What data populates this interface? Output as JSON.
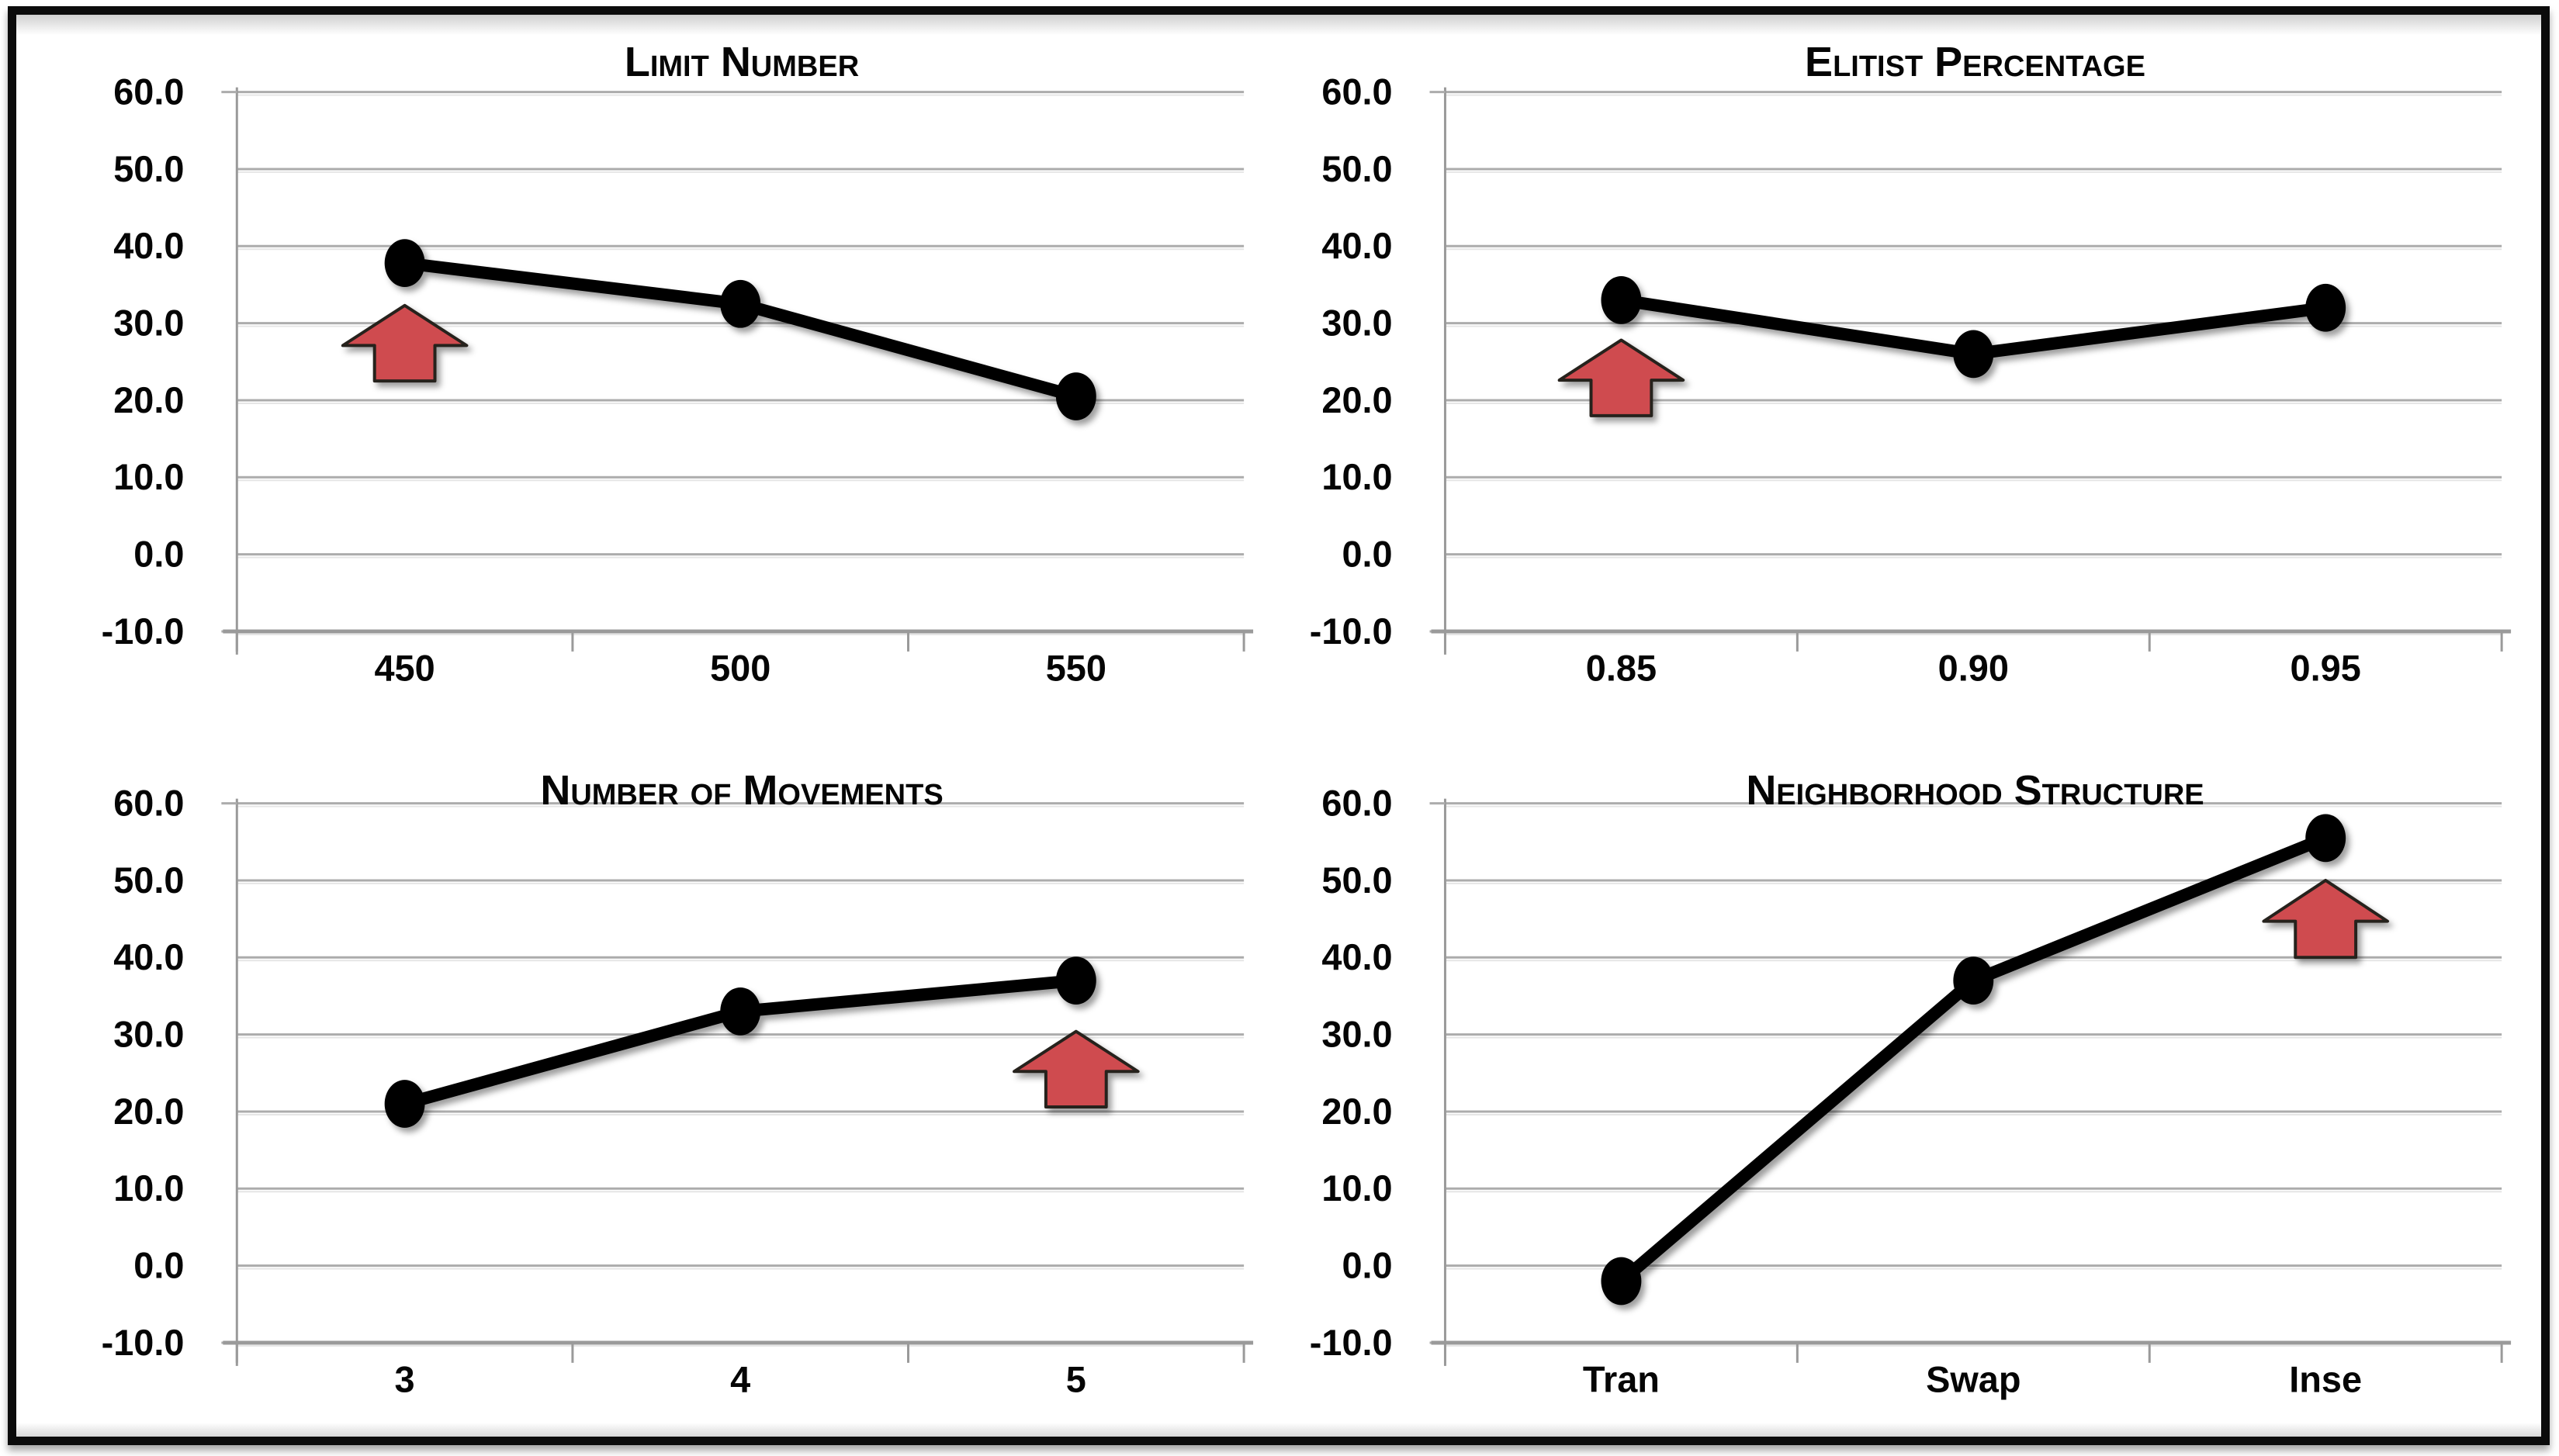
{
  "frame": {
    "background": "#ffffff",
    "border_color": "#0b0b0b"
  },
  "colors": {
    "line": "#000000",
    "marker": "#000000",
    "gridline": "#acacac",
    "gridline_highlight": "#e6e6e6",
    "axis": "#9a9a9a",
    "label": "#050505",
    "arrow_fill": "#CF4C50",
    "arrow_stroke": "#26201f"
  },
  "chart_data": [
    {
      "type": "line",
      "title": "Limit Number",
      "categories": [
        "450",
        "500",
        "550"
      ],
      "values": [
        37.8,
        32.5,
        20.5
      ],
      "ylim": [
        -10,
        60
      ],
      "yticks": [
        60,
        50,
        40,
        30,
        20,
        10,
        0,
        -10
      ],
      "ytick_format_decimals": 1,
      "grid": true,
      "legend": "none",
      "annotations": [
        {
          "type": "up-arrow",
          "category_index": 0,
          "tip_value": 32.3,
          "base_value": 22.5
        }
      ]
    },
    {
      "type": "line",
      "title": "Elitist Percentage",
      "categories": [
        "0.85",
        "0.90",
        "0.95"
      ],
      "values": [
        33.0,
        26.0,
        32.0
      ],
      "ylim": [
        -10,
        60
      ],
      "yticks": [
        60,
        50,
        40,
        30,
        20,
        10,
        0,
        -10
      ],
      "ytick_format_decimals": 1,
      "grid": true,
      "legend": "none",
      "annotations": [
        {
          "type": "up-arrow",
          "category_index": 0,
          "tip_value": 27.8,
          "base_value": 18.0
        }
      ]
    },
    {
      "type": "line",
      "title": "Number of Movements",
      "categories": [
        "3",
        "4",
        "5"
      ],
      "values": [
        21.0,
        33.0,
        37.0
      ],
      "ylim": [
        -10,
        60
      ],
      "yticks": [
        60,
        50,
        40,
        30,
        20,
        10,
        0,
        -10
      ],
      "ytick_format_decimals": 1,
      "grid": true,
      "legend": "none",
      "annotations": [
        {
          "type": "up-arrow",
          "category_index": 2,
          "tip_value": 30.4,
          "base_value": 20.6
        }
      ]
    },
    {
      "type": "line",
      "title": "Neighborhood Structure",
      "categories": [
        "Tran",
        "Swap",
        "Inse"
      ],
      "values": [
        -2.0,
        37.0,
        55.5
      ],
      "ylim": [
        -10,
        60
      ],
      "yticks": [
        60,
        50,
        40,
        30,
        20,
        10,
        0,
        -10
      ],
      "ytick_format_decimals": 1,
      "grid": true,
      "legend": "none",
      "annotations": [
        {
          "type": "up-arrow",
          "category_index": 2,
          "tip_value": 50.0,
          "base_value": 40.0
        }
      ]
    }
  ]
}
